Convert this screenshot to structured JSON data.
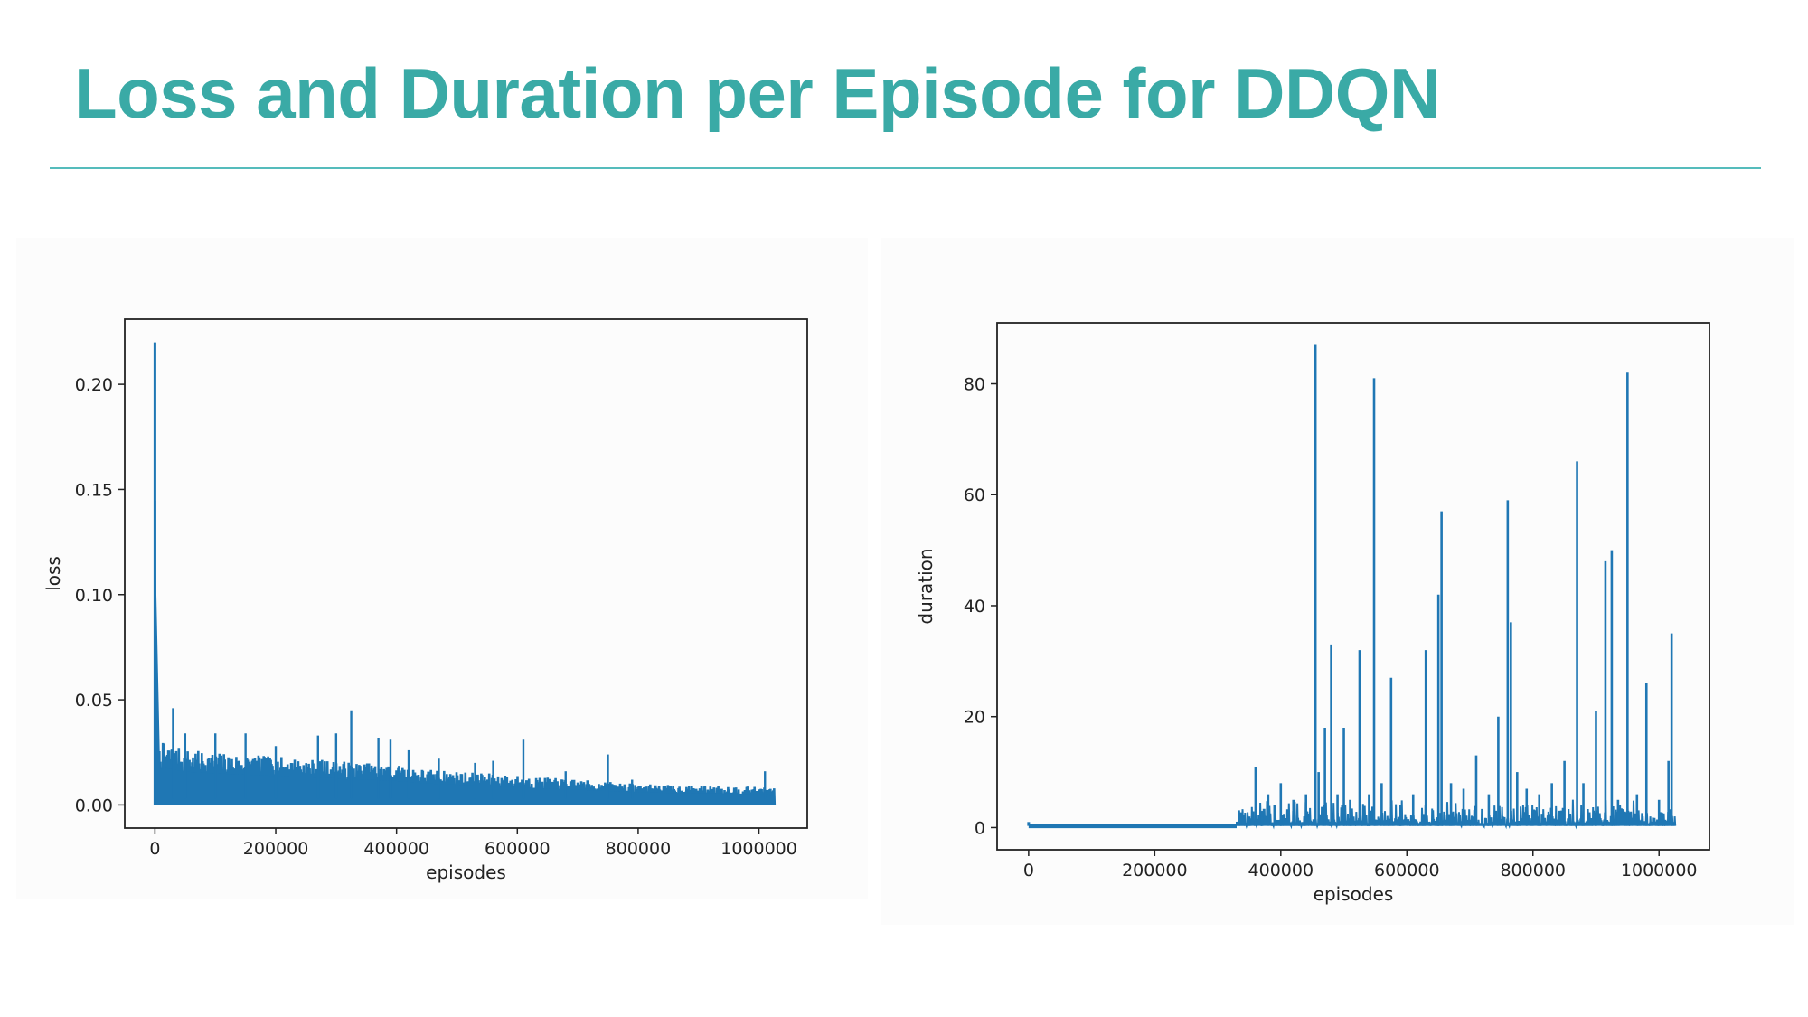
{
  "slide": {
    "title": "Loss and Duration per Episode for DDQN",
    "accent_color": "#3aaaa6"
  },
  "chart_data": [
    {
      "type": "line",
      "title": "",
      "xlabel": "episodes",
      "ylabel": "loss",
      "xlim": [
        -50000,
        1080000
      ],
      "ylim": [
        -0.011,
        0.231
      ],
      "xticks": [
        0,
        200000,
        400000,
        600000,
        800000,
        1000000
      ],
      "xtick_labels": [
        "0",
        "200000",
        "400000",
        "600000",
        "800000",
        "1000000"
      ],
      "yticks": [
        0.0,
        0.05,
        0.1,
        0.15,
        0.2
      ],
      "ytick_labels": [
        "0.00",
        "0.05",
        "0.10",
        "0.15",
        "0.20"
      ],
      "grid": false,
      "line_color": "#1f77b4",
      "series": [
        {
          "x": [
            0,
            400,
            800,
            1500,
            2500,
            5000,
            10000,
            30000,
            60000,
            100000,
            150000,
            200000,
            250000,
            300000,
            350000,
            400000,
            450000,
            500000,
            550000,
            600000,
            650000,
            700000,
            750000,
            800000,
            850000,
            900000,
            950000,
            1000000,
            1025000
          ],
          "y": [
            0.22,
            0.05,
            0.03,
            0.028,
            0.026,
            0.025,
            0.03,
            0.028,
            0.026,
            0.025,
            0.024,
            0.023,
            0.022,
            0.021,
            0.02,
            0.019,
            0.017,
            0.016,
            0.015,
            0.014,
            0.013,
            0.012,
            0.011,
            0.01,
            0.0095,
            0.009,
            0.009,
            0.0085,
            0.008
          ],
          "band_low": [
            0.0,
            0.0,
            0.0,
            0.0,
            0.0,
            0.0,
            0.0,
            0.0,
            0.0,
            0.0,
            0.0,
            0.0,
            0.0,
            0.0,
            0.0,
            0.0,
            0.0,
            0.0,
            0.0,
            0.0,
            0.0,
            0.0,
            0.0,
            0.0,
            0.0,
            0.0,
            0.0,
            0.0,
            0.0
          ]
        }
      ],
      "spikes": [
        {
          "x": 30000,
          "y": 0.046
        },
        {
          "x": 50000,
          "y": 0.034
        },
        {
          "x": 100000,
          "y": 0.034
        },
        {
          "x": 150000,
          "y": 0.034
        },
        {
          "x": 200000,
          "y": 0.028
        },
        {
          "x": 270000,
          "y": 0.033
        },
        {
          "x": 300000,
          "y": 0.034
        },
        {
          "x": 325000,
          "y": 0.045
        },
        {
          "x": 370000,
          "y": 0.032
        },
        {
          "x": 390000,
          "y": 0.031
        },
        {
          "x": 420000,
          "y": 0.026
        },
        {
          "x": 470000,
          "y": 0.022
        },
        {
          "x": 530000,
          "y": 0.02
        },
        {
          "x": 560000,
          "y": 0.021
        },
        {
          "x": 610000,
          "y": 0.031
        },
        {
          "x": 680000,
          "y": 0.016
        },
        {
          "x": 750000,
          "y": 0.024
        },
        {
          "x": 790000,
          "y": 0.012
        },
        {
          "x": 1010000,
          "y": 0.016
        }
      ]
    },
    {
      "type": "line",
      "title": "",
      "xlabel": "episodes",
      "ylabel": "duration",
      "xlim": [
        -50000,
        1080000
      ],
      "ylim": [
        -4,
        91
      ],
      "xticks": [
        0,
        200000,
        400000,
        600000,
        800000,
        1000000
      ],
      "xtick_labels": [
        "0",
        "200000",
        "400000",
        "600000",
        "800000",
        "1000000"
      ],
      "yticks": [
        0,
        20,
        40,
        60,
        80
      ],
      "ytick_labels": [
        "0",
        "20",
        "40",
        "60",
        "80"
      ],
      "grid": false,
      "line_color": "#1f77b4",
      "series": [
        {
          "x": [
            0,
            330000,
            350000,
            360000,
            370000,
            380000,
            390000,
            400000,
            420000,
            440000,
            455000,
            460000,
            470000,
            480000,
            490000,
            500000,
            510000,
            525000,
            540000,
            548000,
            560000,
            575000,
            590000,
            610000,
            630000,
            650000,
            655000,
            670000,
            690000,
            710000,
            730000,
            745000,
            760000,
            765000,
            775000,
            790000,
            810000,
            830000,
            850000,
            870000,
            880000,
            900000,
            915000,
            925000,
            935000,
            950000,
            965000,
            980000,
            1000000,
            1015000,
            1020000,
            1025000
          ],
          "y": [
            0.3,
            0.5,
            2,
            11,
            3,
            6,
            4,
            8,
            5,
            6,
            87,
            10,
            18,
            33,
            6,
            18,
            5,
            32,
            6,
            81,
            8,
            27,
            4,
            6,
            32,
            42,
            57,
            8,
            7,
            13,
            6,
            20,
            59,
            37,
            10,
            7,
            6,
            8,
            12,
            66,
            8,
            21,
            48,
            50,
            5,
            82,
            6,
            26,
            5,
            12,
            35,
            1
          ]
        }
      ]
    }
  ]
}
